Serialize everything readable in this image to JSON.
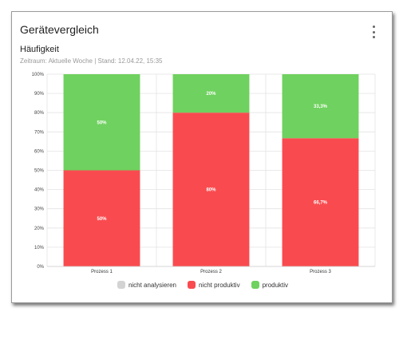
{
  "card": {
    "title": "Gerätevergleich",
    "subtitle": "Häufigkeit",
    "meta": "Zeitraum: Aktuelle Woche | Stand: 12.04.22, 15:35",
    "menu_icon": "more-vertical-icon"
  },
  "chart_data": {
    "type": "bar",
    "stacked": true,
    "categories": [
      "Prozess 1",
      "Prozess 2",
      "Prozess 3"
    ],
    "series": [
      {
        "name": "nicht analysieren",
        "color": "#d3d3d3",
        "values": [
          0,
          0,
          0
        ],
        "labels": [
          "",
          "",
          ""
        ]
      },
      {
        "name": "nicht produktiv",
        "color": "#f94b4f",
        "values": [
          50,
          80,
          66.7
        ],
        "labels": [
          "50%",
          "80%",
          "66,7%"
        ]
      },
      {
        "name": "produktiv",
        "color": "#6fd15f",
        "values": [
          50,
          20,
          33.3
        ],
        "labels": [
          "50%",
          "20%",
          "33,3%"
        ]
      }
    ],
    "yticks": [
      "0%",
      "10%",
      "20%",
      "30%",
      "40%",
      "50%",
      "60%",
      "70%",
      "80%",
      "90%",
      "100%"
    ],
    "ylim": [
      0,
      100
    ],
    "grid": true,
    "legend_position": "bottom"
  }
}
